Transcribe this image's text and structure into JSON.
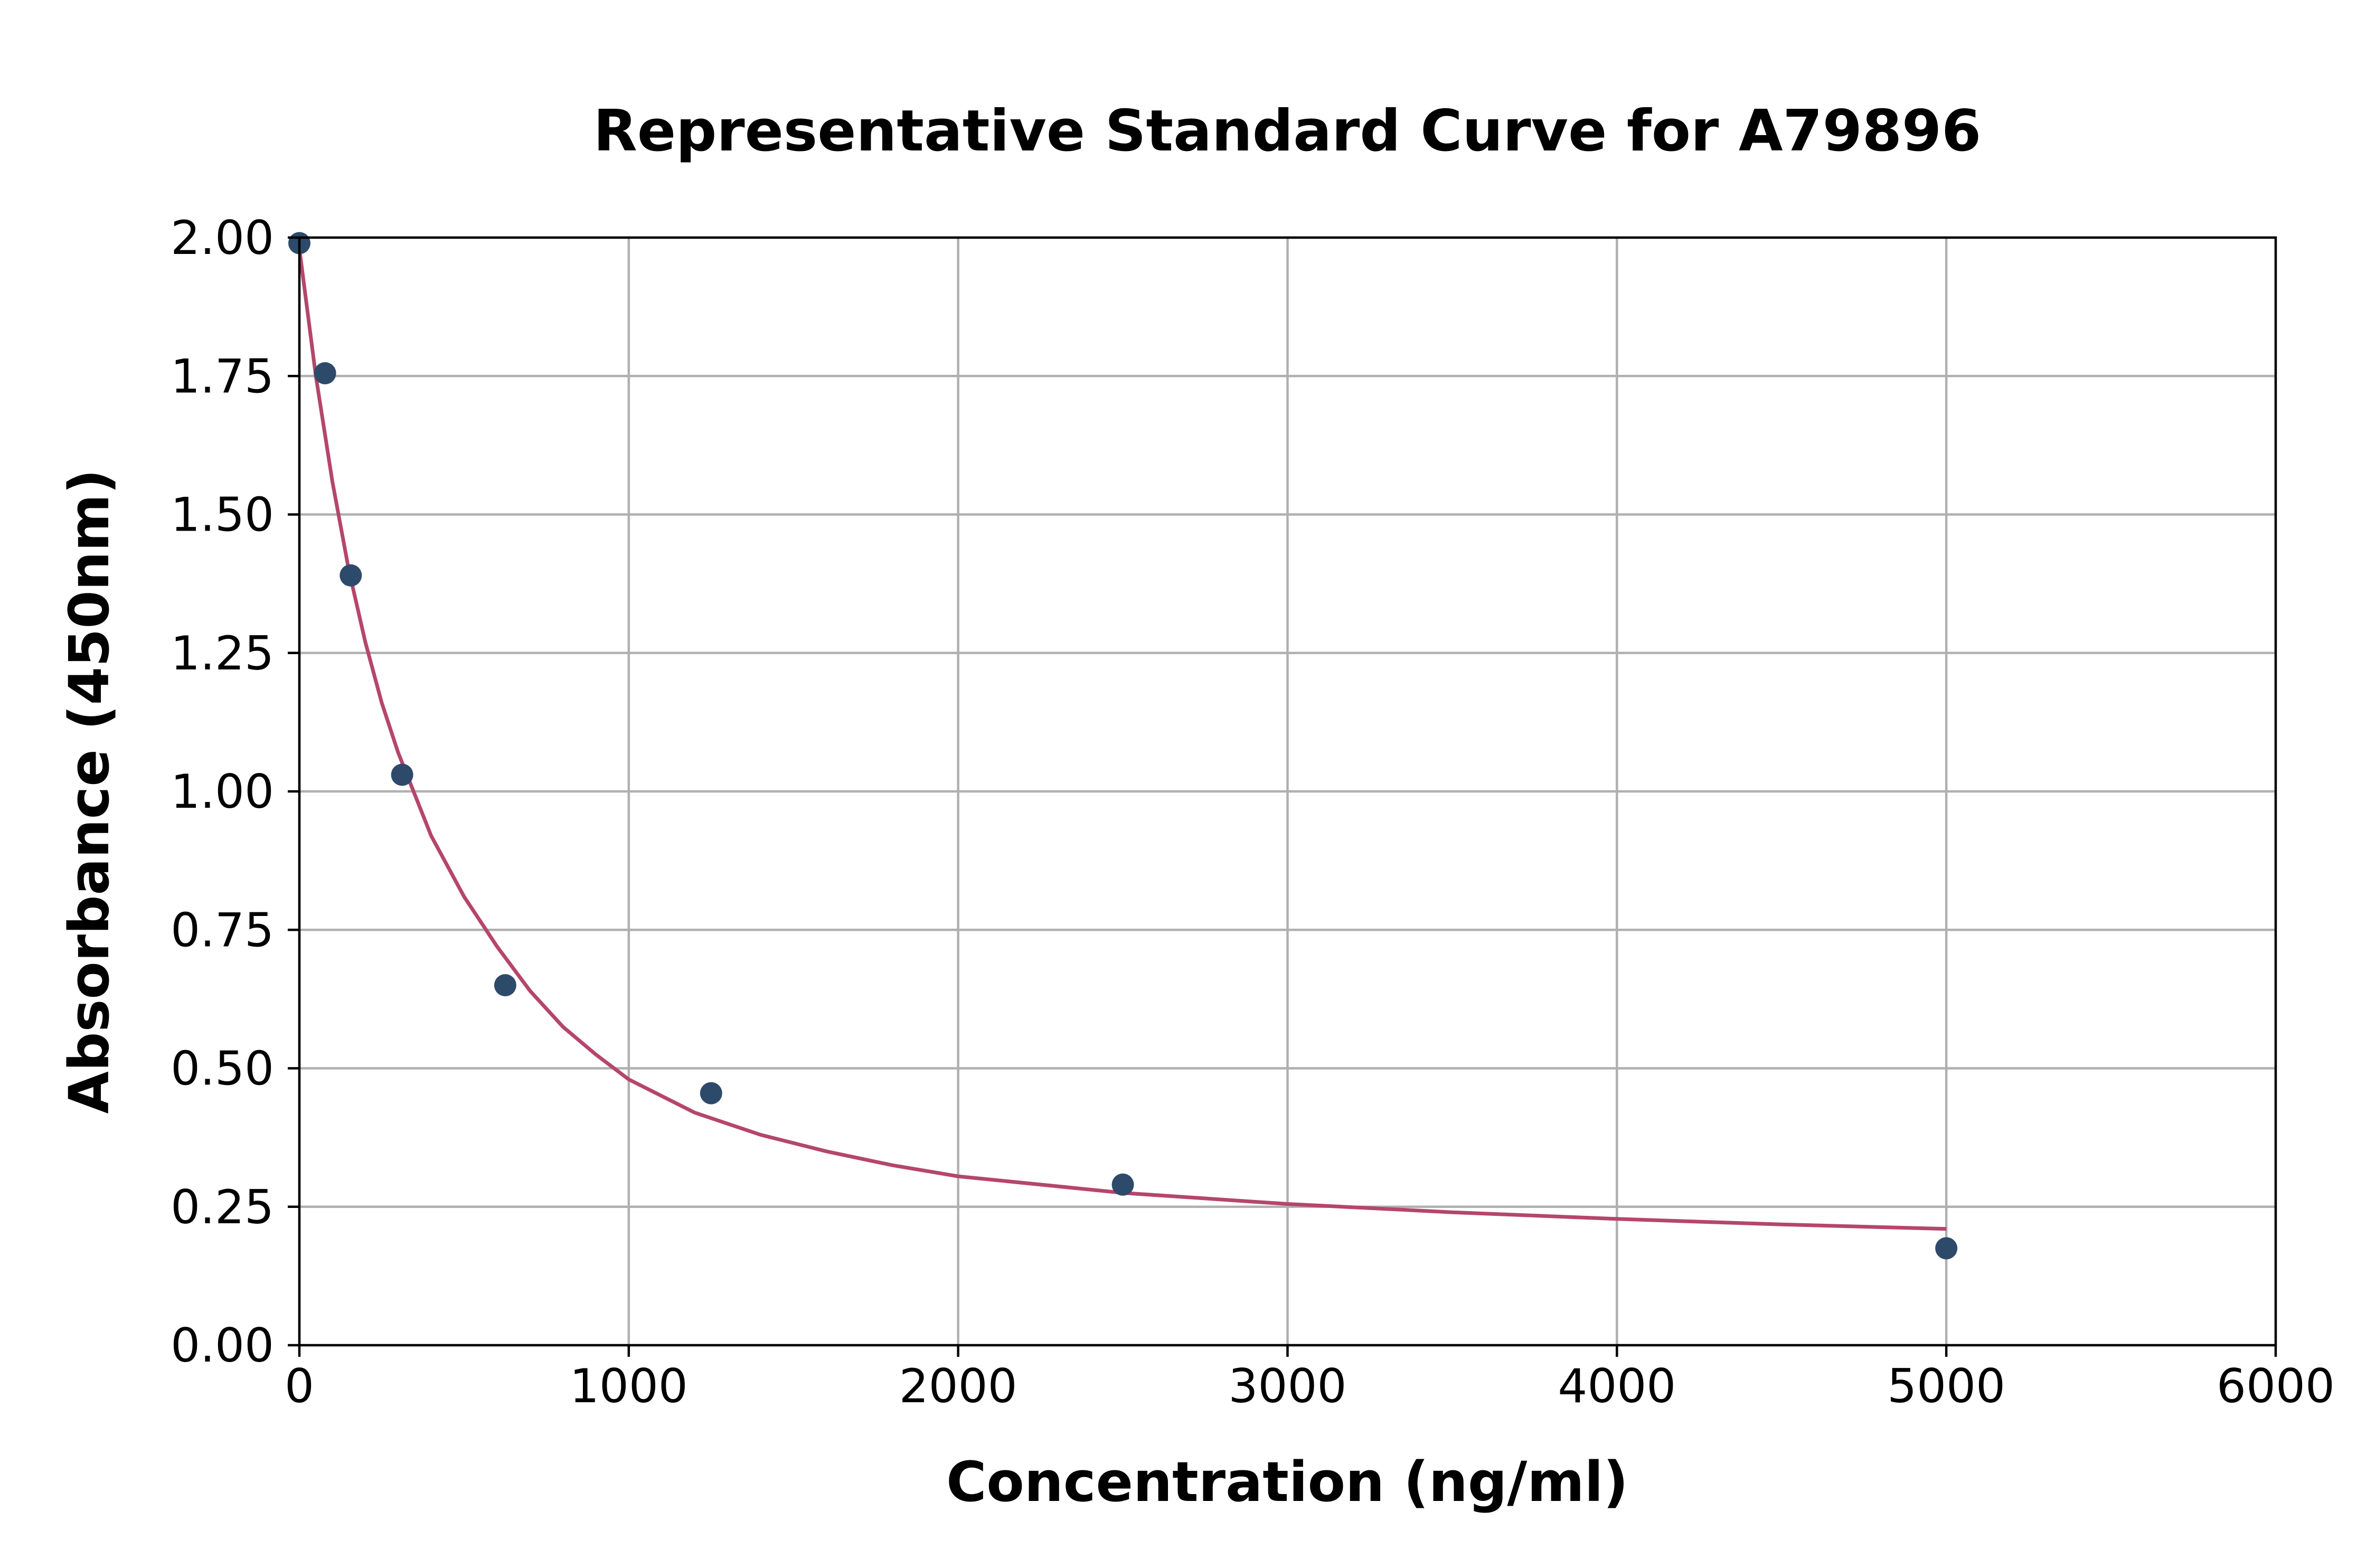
{
  "chart_data": {
    "type": "scatter",
    "title": "Representative Standard Curve for A79896",
    "xlabel": "Concentration (ng/ml)",
    "ylabel": "Absorbance (450nm)",
    "xlim": [
      0,
      6000
    ],
    "ylim": [
      0,
      2
    ],
    "xticks": [
      "0",
      "1000",
      "2000",
      "3000",
      "4000",
      "5000",
      "6000"
    ],
    "yticks": [
      "0.00",
      "0.25",
      "0.50",
      "0.75",
      "1.00",
      "1.25",
      "1.50",
      "1.75",
      "2.00"
    ],
    "grid": true,
    "points": {
      "x": [
        0,
        78,
        156,
        312,
        625,
        1250,
        2500,
        5000
      ],
      "y": [
        1.99,
        1.755,
        1.39,
        1.03,
        0.65,
        0.455,
        0.29,
        0.175
      ]
    },
    "fit_curve": {
      "x": [
        0,
        50,
        100,
        150,
        200,
        250,
        300,
        400,
        500,
        600,
        700,
        800,
        900,
        1000,
        1200,
        1400,
        1600,
        1800,
        2000,
        2500,
        3000,
        3500,
        4000,
        4500,
        5000
      ],
      "y": [
        1.98,
        1.75,
        1.56,
        1.4,
        1.27,
        1.16,
        1.07,
        0.92,
        0.81,
        0.72,
        0.64,
        0.575,
        0.525,
        0.48,
        0.42,
        0.38,
        0.35,
        0.325,
        0.305,
        0.275,
        0.255,
        0.24,
        0.228,
        0.218,
        0.21
      ]
    },
    "colors": {
      "points": "#2e4a6b",
      "fit_line": "#b5466b",
      "grid": "#b0b0b0"
    }
  }
}
